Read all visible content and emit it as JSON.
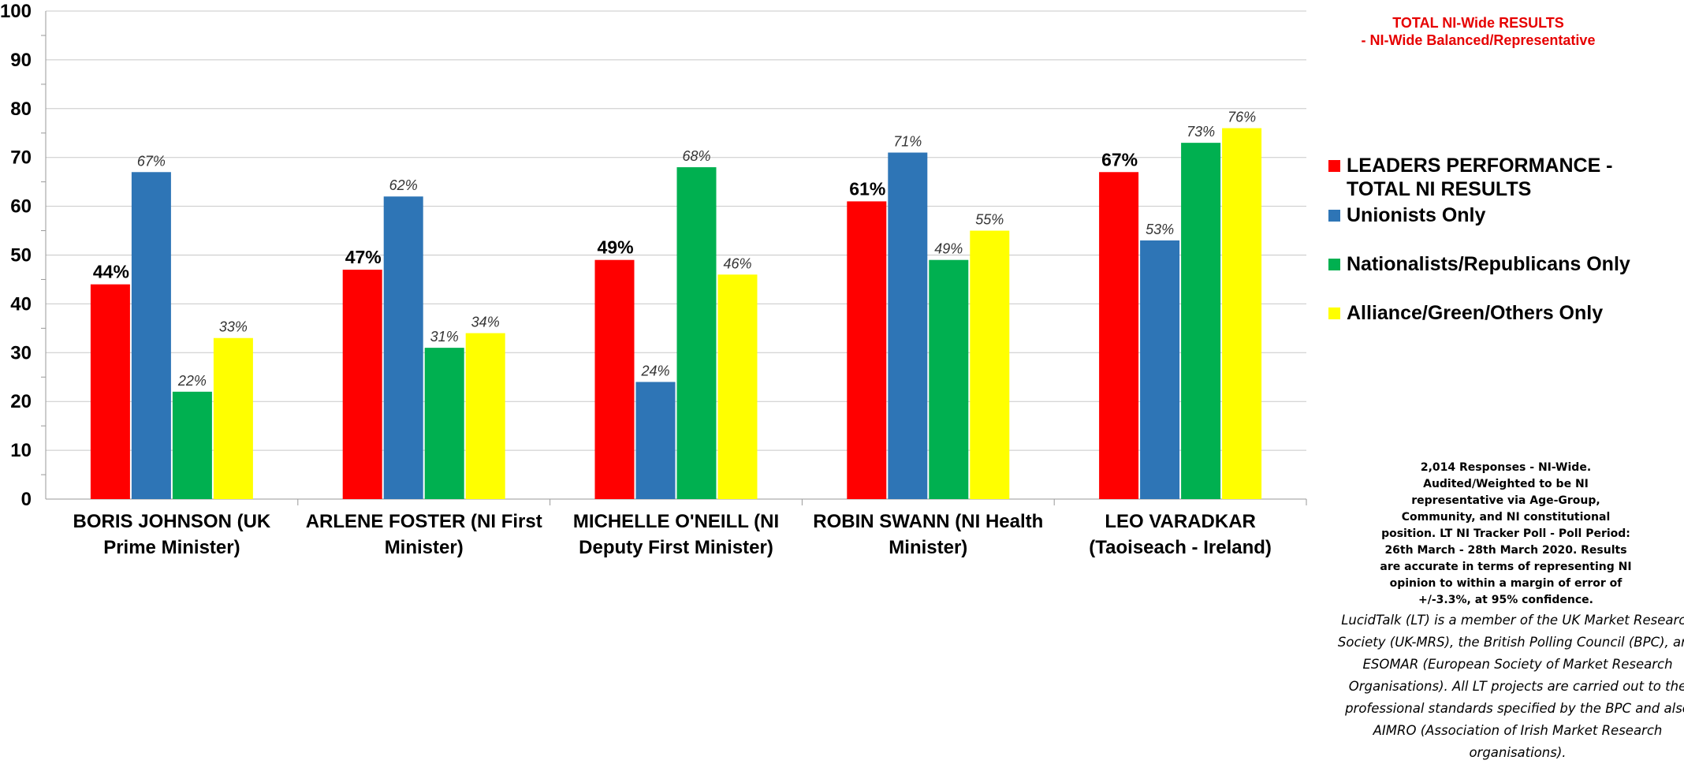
{
  "chart_data": {
    "type": "bar",
    "title": "TOTAL NI-Wide RESULTS",
    "subtitle": "- NI-Wide Balanced/Representative",
    "categories": [
      [
        "BORIS JOHNSON (UK",
        "Prime Minister)"
      ],
      [
        "ARLENE FOSTER (NI First",
        "Minister)"
      ],
      [
        "MICHELLE O'NEILL (NI",
        "Deputy First Minister)"
      ],
      [
        "ROBIN SWANN (NI Health",
        "Minister)"
      ],
      [
        "LEO VARADKAR",
        "(Taoiseach - Ireland)"
      ]
    ],
    "series": [
      {
        "name": "LEADERS PERFORMANCE - TOTAL NI RESULTS",
        "name_lines": [
          "LEADERS PERFORMANCE -",
          "TOTAL NI RESULTS"
        ],
        "color": "#ff0000",
        "label_style": "bold",
        "values": [
          44,
          47,
          49,
          61,
          67
        ],
        "labels": [
          "44%",
          "47%",
          "49%",
          "61%",
          "67%"
        ]
      },
      {
        "name": "Unionists Only",
        "name_lines": [
          "Unionists Only"
        ],
        "color": "#2e75b6",
        "label_style": "italic",
        "values": [
          67,
          62,
          24,
          71,
          53
        ],
        "labels": [
          "67%",
          "62%",
          "24%",
          "71%",
          "53%"
        ]
      },
      {
        "name": "Nationalists/Republicans Only",
        "name_lines": [
          "Nationalists/Republicans Only"
        ],
        "color": "#00b050",
        "label_style": "italic",
        "values": [
          22,
          31,
          68,
          49,
          73
        ],
        "labels": [
          "22%",
          "31%",
          "68%",
          "49%",
          "73%"
        ]
      },
      {
        "name": "Alliance/Green/Others Only",
        "name_lines": [
          "Alliance/Green/Others Only"
        ],
        "color": "#ffff00",
        "label_style": "italic",
        "values": [
          33,
          34,
          46,
          55,
          76
        ],
        "labels": [
          "33%",
          "34%",
          "46%",
          "55%",
          "76%"
        ]
      }
    ],
    "ylim": [
      0,
      100
    ],
    "yticks": [
      0,
      10,
      20,
      30,
      40,
      50,
      60,
      70,
      80,
      90,
      100
    ],
    "xlabel": "",
    "ylabel": "",
    "grid": true,
    "legend_position": "right"
  },
  "notes": {
    "methodology": "2,014 Responses - NI-Wide. Audited/Weighted to be NI representative via Age-Group, Community, and NI constitutional position. LT NI Tracker Poll - Poll Period: 26th March - 28th March 2020. Results are accurate in terms of representing NI opinion to within a margin of error of +/-3.3%, at 95% confidence.",
    "about": "LucidTalk (LT) is a member of the UK Market Research Society (UK-MRS), the British Polling Council (BPC), and ESOMAR (European Society of Market Research Organisations). All LT projects are carried out to the professional standards specified by the BPC and also AIMRO (Association of Irish Market Research organisations)."
  }
}
